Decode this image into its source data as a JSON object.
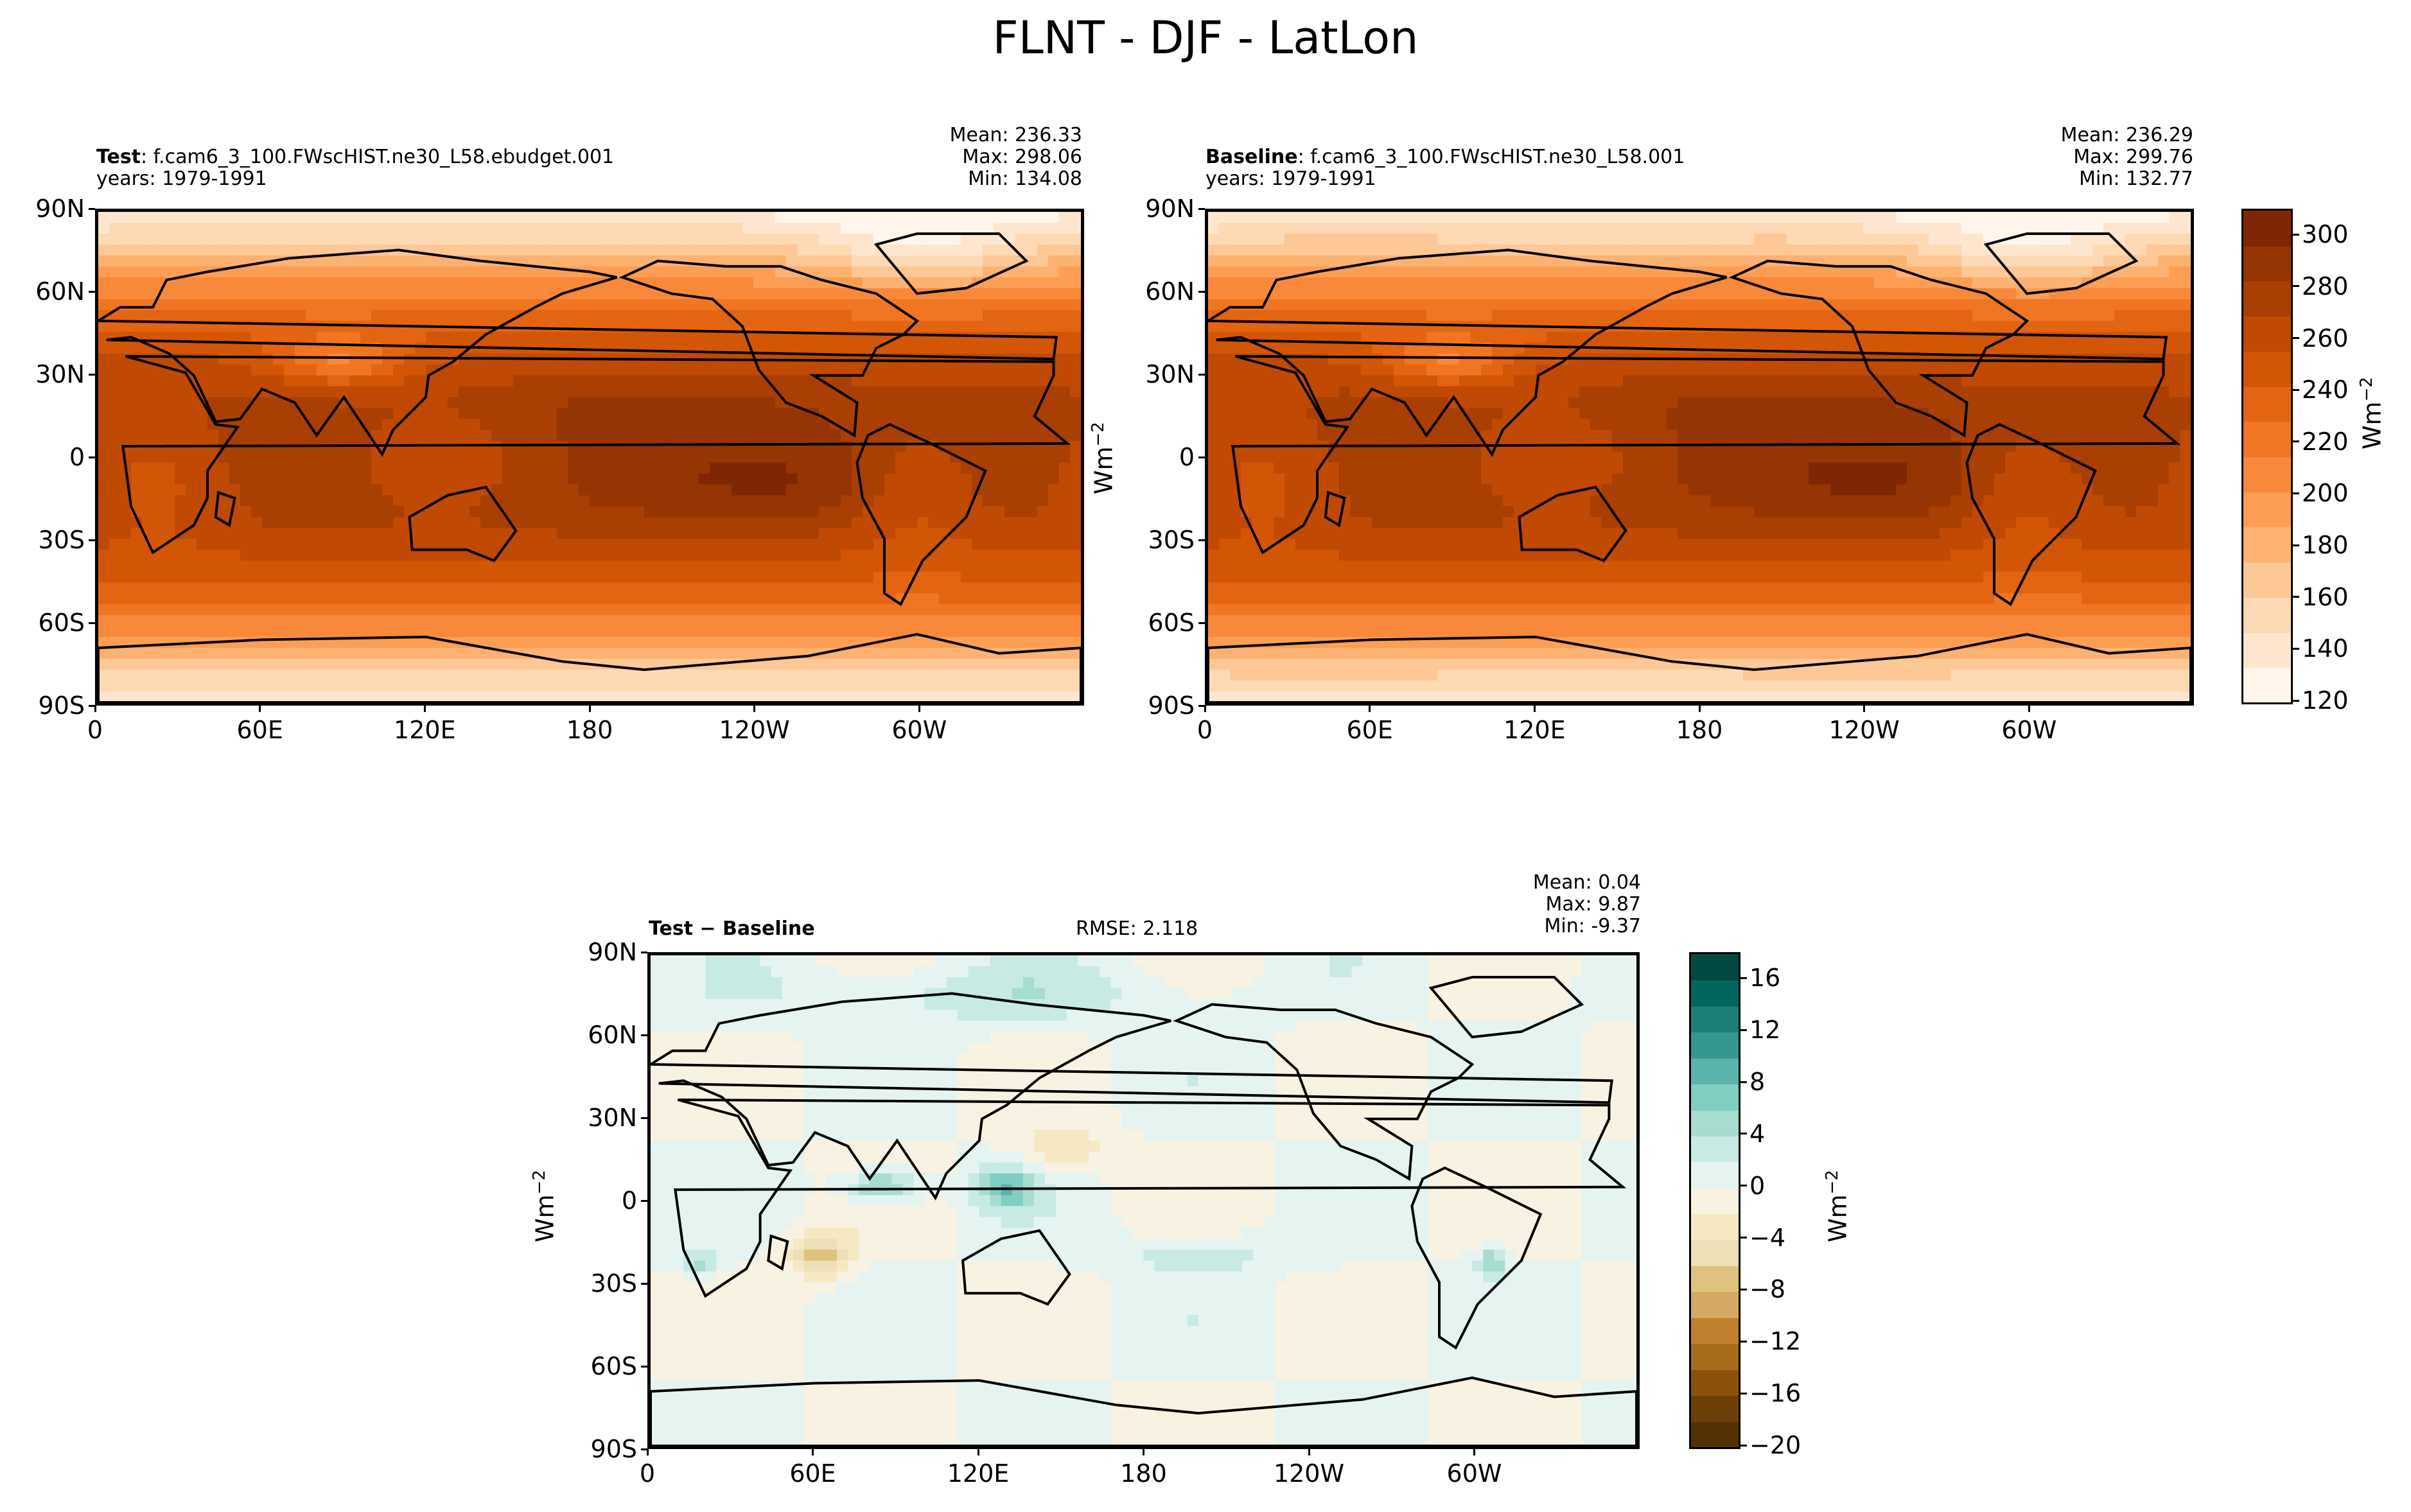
{
  "figure_title": "FLNT - DJF - LatLon",
  "units": {
    "base": "Wm",
    "exp": "−2"
  },
  "lat_ticks": [
    "90N",
    "60N",
    "30N",
    "0",
    "30S",
    "60S",
    "90S"
  ],
  "lon_ticks": [
    "0",
    "60E",
    "120E",
    "180",
    "120W",
    "60W"
  ],
  "panels": {
    "test": {
      "label_bold": "Test",
      "label_rest": ": f.cam6_3_100.FWscHIST.ne30_L58.ebudget.001",
      "years": "years: 1979-1991",
      "mean": "Mean: 236.33",
      "max": "Max: 298.06",
      "min": "Min: 134.08"
    },
    "baseline": {
      "label_bold": "Baseline",
      "label_rest": ": f.cam6_3_100.FWscHIST.ne30_L58.001",
      "years": "years: 1979-1991",
      "mean": "Mean: 236.29",
      "max": "Max: 299.76",
      "min": "Min: 132.77"
    },
    "diff": {
      "label": "Test − Baseline",
      "rmse": "RMSE: 2.118",
      "mean": "Mean:  0.04",
      "max": "Max:  9.87",
      "min": "Min: -9.37"
    }
  },
  "colors": {
    "orange_scale": [
      "#fff5eb",
      "#fee6ce",
      "#fdd9b4",
      "#fdc895",
      "#fdb272",
      "#fd9e54",
      "#f9893a",
      "#f07623",
      "#e36512",
      "#d35607",
      "#c04a03",
      "#a93f03",
      "#953503",
      "#7f2704"
    ],
    "diff_scale": [
      "#543005",
      "#6e4009",
      "#8c510a",
      "#a86c1d",
      "#bf812d",
      "#d4a961",
      "#dfc27d",
      "#ede0b6",
      "#f6e8c3",
      "#f8f2e3",
      "#e6f4f1",
      "#c7eae5",
      "#a7dcd1",
      "#80cdc1",
      "#5ab4ac",
      "#35978f",
      "#1e7f76",
      "#01665e",
      "#004a41"
    ]
  },
  "chart_data": [
    {
      "type": "heatmap",
      "panel": "test",
      "variable": "FLNT",
      "x_range": [
        0,
        360
      ],
      "y_range": [
        -90,
        90
      ],
      "colorbar_ticks": [
        120,
        140,
        160,
        180,
        200,
        220,
        240,
        260,
        280,
        300
      ],
      "colorbar_range": [
        120,
        310
      ],
      "mean": 236.33,
      "max": 298.06,
      "min": 134.08
    },
    {
      "type": "heatmap",
      "panel": "baseline",
      "variable": "FLNT",
      "x_range": [
        0,
        360
      ],
      "y_range": [
        -90,
        90
      ],
      "colorbar_ticks": [
        120,
        140,
        160,
        180,
        200,
        220,
        240,
        260,
        280,
        300
      ],
      "colorbar_range": [
        120,
        310
      ],
      "mean": 236.29,
      "max": 299.76,
      "min": 132.77
    },
    {
      "type": "heatmap",
      "panel": "diff",
      "variable": "FLNT",
      "x_range": [
        0,
        360
      ],
      "y_range": [
        -90,
        90
      ],
      "colorbar_ticks": [
        "−20",
        "−16",
        "−12",
        "−8",
        "−4",
        "0",
        "4",
        "8",
        "12",
        "16"
      ],
      "colorbar_range": [
        -20,
        18
      ],
      "rmse": 2.118,
      "mean": 0.04,
      "max": 9.87,
      "min": -9.37
    }
  ]
}
